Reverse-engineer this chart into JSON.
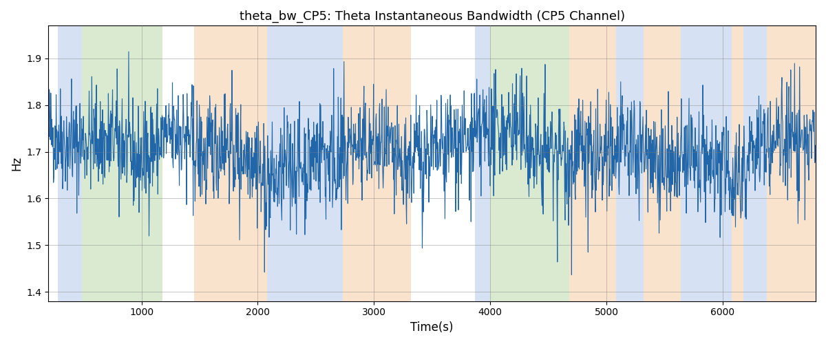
{
  "title": "theta_bw_CP5: Theta Instantaneous Bandwidth (CP5 Channel)",
  "xlabel": "Time(s)",
  "ylabel": "Hz",
  "xlim": [
    200,
    6800
  ],
  "ylim": [
    1.38,
    1.97
  ],
  "yticks": [
    1.4,
    1.5,
    1.6,
    1.7,
    1.8,
    1.9
  ],
  "xticks": [
    1000,
    2000,
    3000,
    4000,
    5000,
    6000
  ],
  "line_color": "#2166a8",
  "line_width": 0.8,
  "bg_color": "#ffffff",
  "bands": [
    {
      "xmin": 280,
      "xmax": 490,
      "color": "#aec6e8",
      "alpha": 0.5
    },
    {
      "xmin": 490,
      "xmax": 1180,
      "color": "#b5d6a5",
      "alpha": 0.5
    },
    {
      "xmin": 1450,
      "xmax": 2080,
      "color": "#f5c99a",
      "alpha": 0.5
    },
    {
      "xmin": 2080,
      "xmax": 2730,
      "color": "#aec6e8",
      "alpha": 0.5
    },
    {
      "xmin": 2730,
      "xmax": 3320,
      "color": "#f5c99a",
      "alpha": 0.5
    },
    {
      "xmin": 3870,
      "xmax": 4000,
      "color": "#aec6e8",
      "alpha": 0.5
    },
    {
      "xmin": 4000,
      "xmax": 4680,
      "color": "#b5d6a5",
      "alpha": 0.5
    },
    {
      "xmin": 4680,
      "xmax": 5080,
      "color": "#f5c99a",
      "alpha": 0.5
    },
    {
      "xmin": 5080,
      "xmax": 5320,
      "color": "#aec6e8",
      "alpha": 0.5
    },
    {
      "xmin": 5320,
      "xmax": 5640,
      "color": "#f5c99a",
      "alpha": 0.5
    },
    {
      "xmin": 5640,
      "xmax": 6080,
      "color": "#aec6e8",
      "alpha": 0.5
    },
    {
      "xmin": 6080,
      "xmax": 6180,
      "color": "#f5c99a",
      "alpha": 0.5
    },
    {
      "xmin": 6180,
      "xmax": 6380,
      "color": "#aec6e8",
      "alpha": 0.5
    },
    {
      "xmin": 6380,
      "xmax": 6800,
      "color": "#f5c99a",
      "alpha": 0.5
    }
  ],
  "seed": 42,
  "n_points": 2000,
  "x_start": 200,
  "x_end": 6800
}
